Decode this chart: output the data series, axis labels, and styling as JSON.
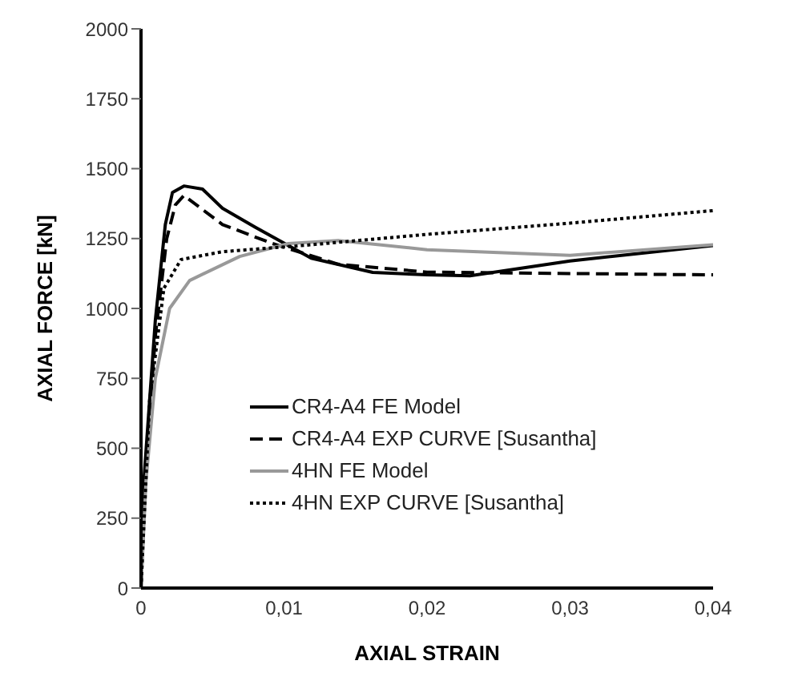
{
  "chart_data": {
    "type": "line",
    "xlabel": "AXIAL STRAIN",
    "ylabel": "AXIAL FORCE   [kN]",
    "xlim": [
      0,
      0.04
    ],
    "xticks": [
      0,
      {
        "value": 0.01,
        "label": "0,01"
      },
      {
        "value": 0.02,
        "label": "0,02"
      },
      {
        "value": 0.03,
        "label": "0,03"
      },
      {
        "value": 0.04,
        "label": "0,04"
      }
    ],
    "ylim": [
      0,
      2000
    ],
    "yticks": [
      0,
      250,
      500,
      750,
      1000,
      1250,
      1500,
      1750,
      2000
    ],
    "grid": false,
    "legend": "bottom",
    "marker": "none",
    "series": [
      {
        "name": "CR4-A4 FE Model",
        "color": "#000000",
        "line_style": "solid",
        "x": [
          0,
          0.0002,
          0.001,
          0.0017,
          0.0022,
          0.003,
          0.0043,
          0.0057,
          0.008,
          0.0119,
          0.0162,
          0.02,
          0.023,
          0.03,
          0.04
        ],
        "values": [
          0,
          384,
          957,
          1300,
          1415,
          1438,
          1427,
          1358,
          1290,
          1180,
          1129,
          1120,
          1117,
          1170,
          1225
        ]
      },
      {
        "name": "CR4-A4 EXP CURVE [Susantha]",
        "color": "#000000",
        "line_style": "dashed",
        "x": [
          0,
          0.0003,
          0.001,
          0.0018,
          0.0024,
          0.003,
          0.0057,
          0.0092,
          0.0138,
          0.02,
          0.03,
          0.04
        ],
        "values": [
          0,
          400,
          900,
          1250,
          1370,
          1404,
          1300,
          1232,
          1158,
          1130,
          1125,
          1120
        ]
      },
      {
        "name": "4HN FE Model",
        "color": "#999999",
        "line_style": "solid",
        "x": [
          0,
          0.00035,
          0.001,
          0.002,
          0.0034,
          0.0069,
          0.0103,
          0.0138,
          0.02,
          0.03,
          0.04
        ],
        "values": [
          0,
          384,
          750,
          1000,
          1100,
          1186,
          1232,
          1243,
          1210,
          1190,
          1228
        ]
      },
      {
        "name": "4HN EXP CURVE [Susantha]",
        "color": "#000000",
        "line_style": "dotted",
        "x": [
          0,
          0.0006,
          0.0016,
          0.0028,
          0.0057,
          0.0115,
          0.02,
          0.03,
          0.04
        ],
        "values": [
          0,
          670,
          1072,
          1175,
          1203,
          1226,
          1265,
          1305,
          1350
        ]
      }
    ]
  }
}
